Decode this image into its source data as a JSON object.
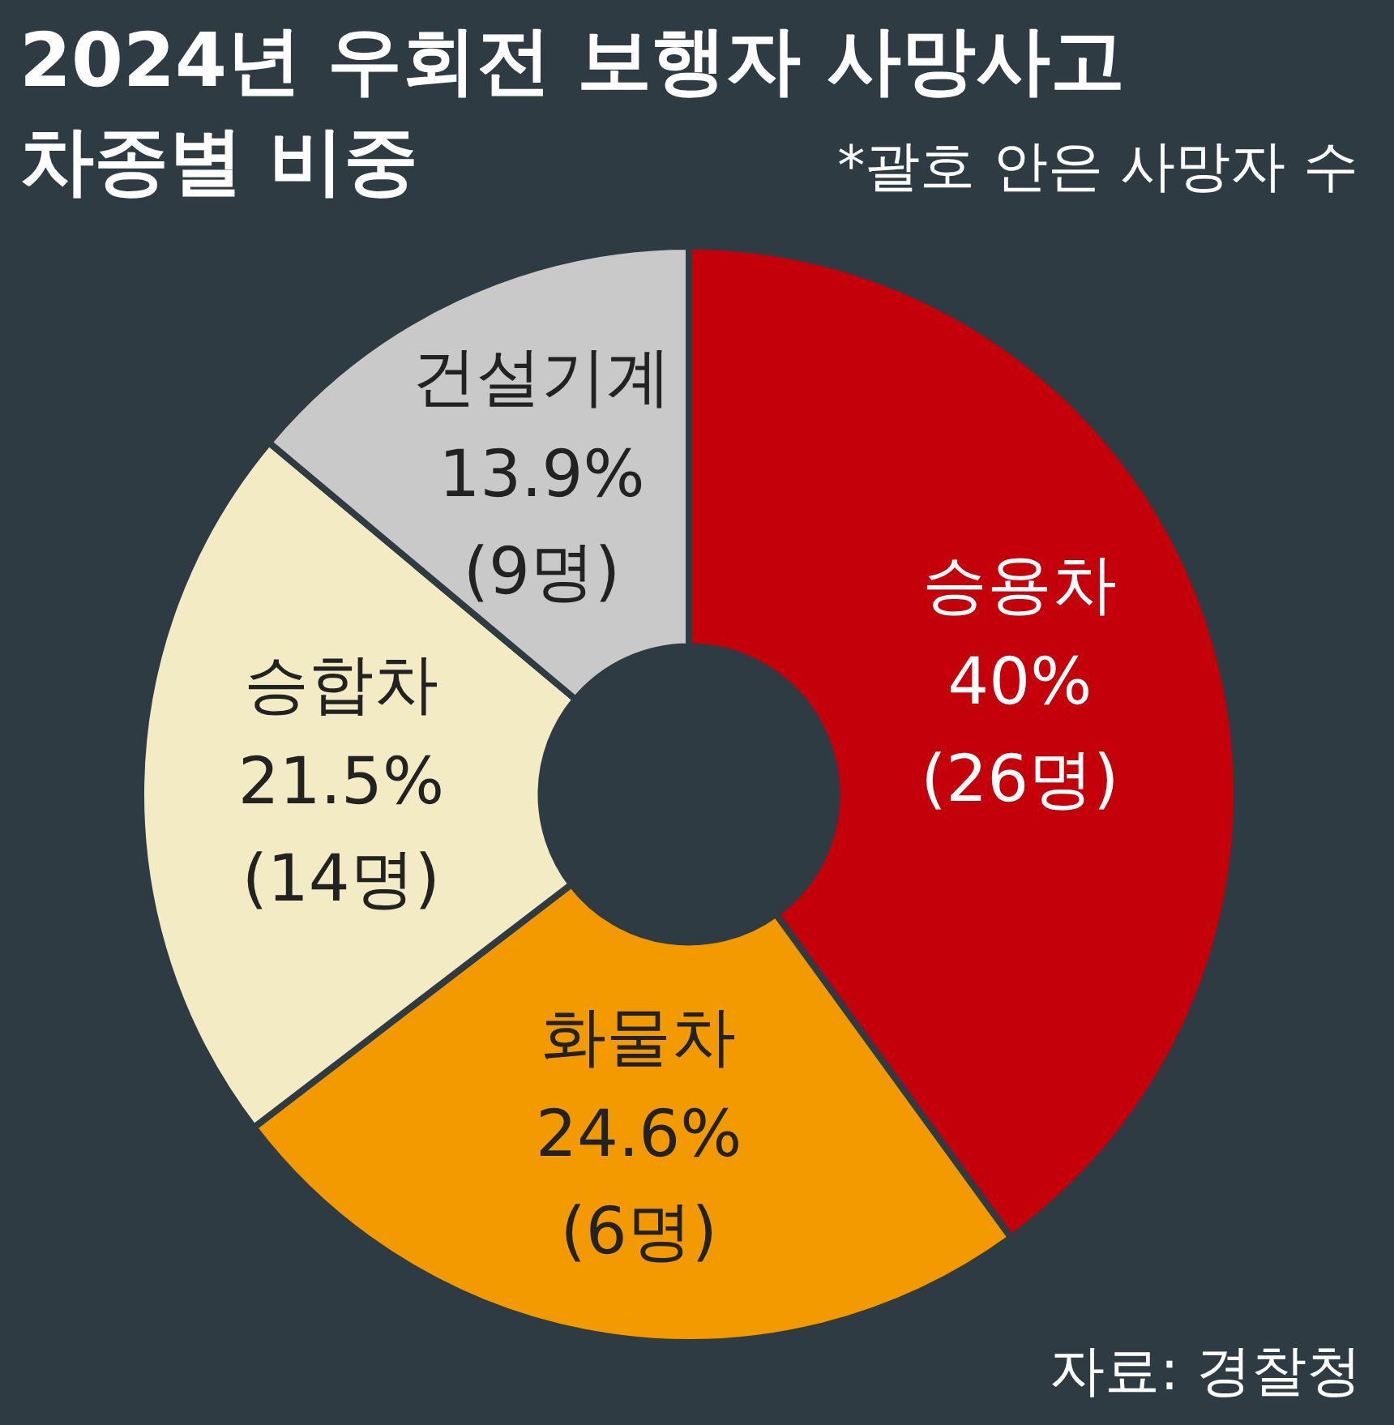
{
  "chart_data": {
    "type": "donut",
    "title": "2024년 우회전 보행자 사망사고\n차종별 비중",
    "subtitle": "*괄호 안은 사망자 수",
    "categories": [
      "승용차",
      "화물차",
      "승합차",
      "건설기계"
    ],
    "values": [
      40,
      24.6,
      21.5,
      13.9
    ],
    "value_labels": [
      "40%\n(26명)",
      "24.6%\n(6명)",
      "21.5%\n(14명)",
      "13.9%\n(9명)"
    ],
    "colors": [
      "#c4000b",
      "#f29a00",
      "#f2ebc4",
      "#c9c9c9"
    ],
    "annotations": [
      "자료: 경찰청"
    ],
    "legend": false
  }
}
